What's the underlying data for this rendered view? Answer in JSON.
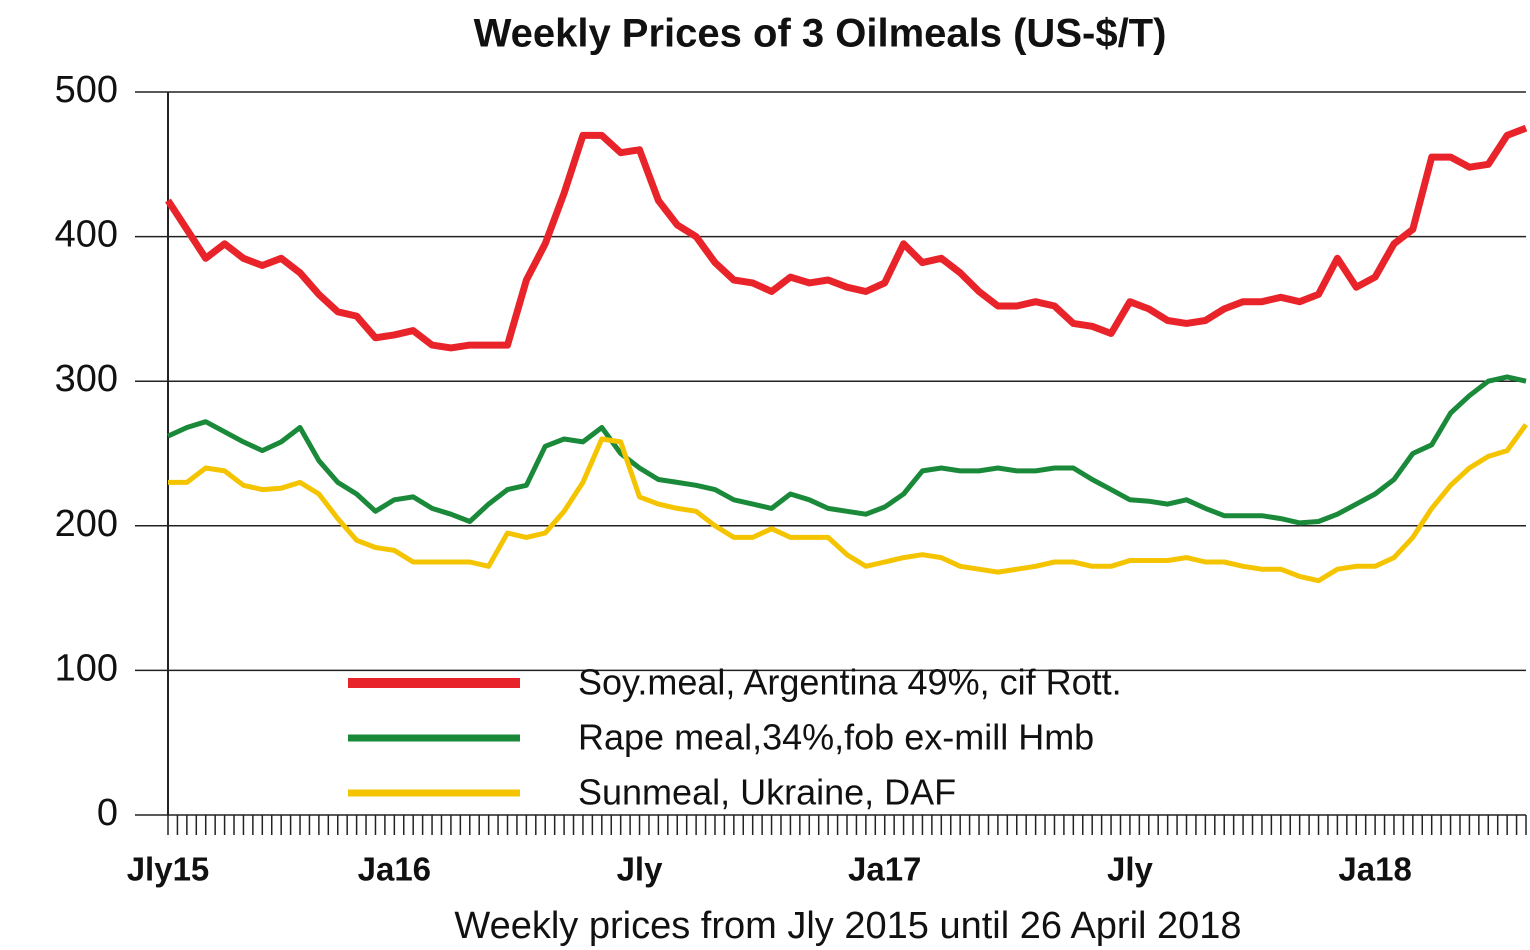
{
  "chart_data": {
    "type": "line",
    "title": "Weekly Prices of 3 Oilmeals  (US-$/T)",
    "x_label": "Weekly prices from Jly 2015 until 26 April 2018",
    "categories": [
      "Jly15",
      null,
      null,
      null,
      null,
      null,
      null,
      null,
      null,
      null,
      null,
      null,
      "Ja16",
      null,
      null,
      null,
      null,
      null,
      null,
      null,
      null,
      null,
      null,
      null,
      null,
      "Jly",
      null,
      null,
      null,
      null,
      null,
      null,
      null,
      null,
      null,
      null,
      null,
      null,
      "Ja17",
      null,
      null,
      null,
      null,
      null,
      null,
      null,
      null,
      null,
      null,
      null,
      null,
      "Jly",
      null,
      null,
      null,
      null,
      null,
      null,
      null,
      null,
      null,
      null,
      null,
      null,
      "Ja18",
      null,
      null,
      null,
      null,
      null,
      null,
      null,
      null
    ],
    "series": [
      {
        "name": "Soy.meal, Argentina 49%, cif Rott.",
        "color": "#e8232a",
        "values": [
          425,
          405,
          385,
          395,
          385,
          380,
          385,
          375,
          360,
          348,
          345,
          330,
          332,
          335,
          325,
          323,
          325,
          325,
          325,
          370,
          395,
          430,
          470,
          470,
          458,
          460,
          425,
          408,
          400,
          382,
          370,
          368,
          362,
          372,
          368,
          370,
          365,
          362,
          368,
          395,
          382,
          385,
          375,
          362,
          352,
          352,
          355,
          352,
          340,
          338,
          333,
          355,
          350,
          342,
          340,
          342,
          350,
          355,
          355,
          358,
          355,
          360,
          385,
          365,
          372,
          395,
          405,
          455,
          455,
          448,
          450,
          470,
          475
        ]
      },
      {
        "name": "Rape meal,34%,fob ex-mill Hmb",
        "color": "#1a8a3a",
        "values": [
          262,
          268,
          272,
          265,
          258,
          252,
          258,
          268,
          245,
          230,
          222,
          210,
          218,
          220,
          212,
          208,
          203,
          215,
          225,
          228,
          255,
          260,
          258,
          268,
          250,
          240,
          232,
          230,
          228,
          225,
          218,
          215,
          212,
          222,
          218,
          212,
          210,
          208,
          213,
          222,
          238,
          240,
          238,
          238,
          240,
          238,
          238,
          240,
          240,
          232,
          225,
          218,
          217,
          215,
          218,
          212,
          207,
          207,
          207,
          205,
          202,
          203,
          208,
          215,
          222,
          232,
          250,
          256,
          278,
          290,
          300,
          303,
          300
        ]
      },
      {
        "name": "Sunmeal, Ukraine, DAF",
        "color": "#f5c400",
        "values": [
          230,
          230,
          240,
          238,
          228,
          225,
          226,
          230,
          222,
          205,
          190,
          185,
          183,
          175,
          175,
          175,
          175,
          172,
          195,
          192,
          195,
          210,
          230,
          260,
          258,
          220,
          215,
          212,
          210,
          200,
          192,
          192,
          198,
          192,
          192,
          192,
          180,
          172,
          175,
          178,
          180,
          178,
          172,
          170,
          168,
          170,
          172,
          175,
          175,
          172,
          172,
          176,
          176,
          176,
          178,
          175,
          175,
          172,
          170,
          170,
          165,
          162,
          170,
          172,
          172,
          178,
          192,
          212,
          228,
          240,
          248,
          252,
          270
        ]
      }
    ],
    "ylim": [
      0,
      500
    ],
    "yticks": [
      0,
      100,
      200,
      300,
      400,
      500
    ],
    "grid": true
  }
}
